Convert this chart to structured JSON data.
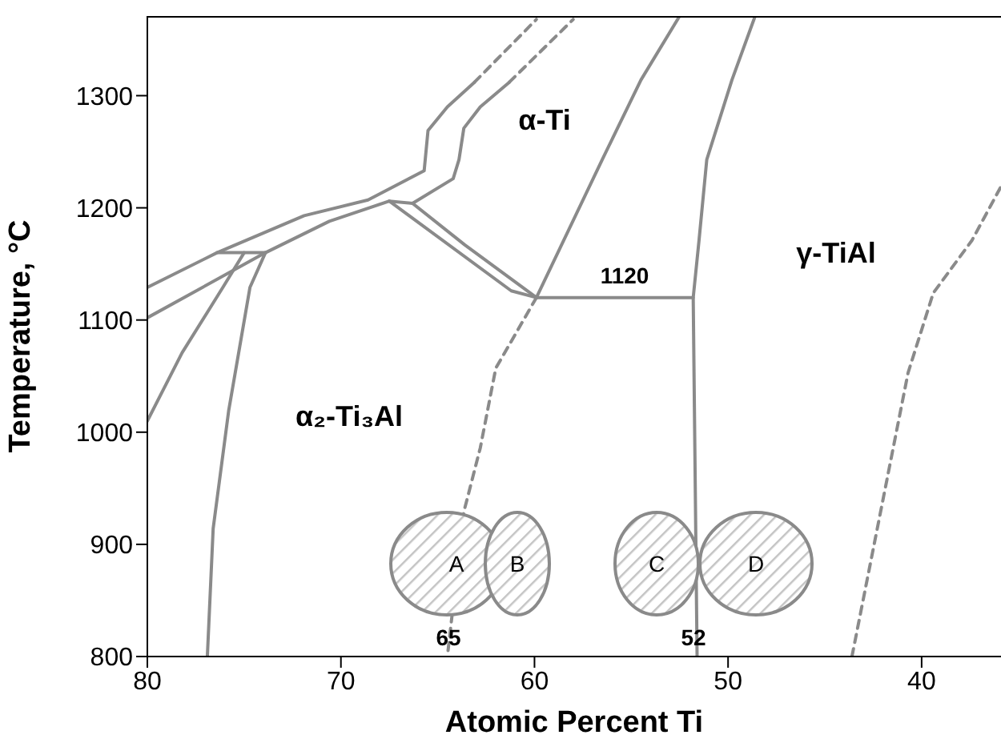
{
  "chart_data": {
    "type": "line",
    "xlabel": "Atomic Percent Ti",
    "ylabel": "Temperature, °C",
    "xlim": [
      80,
      35.9
    ],
    "ylim": [
      800,
      1371
    ],
    "xticks": [
      80,
      70,
      60,
      50,
      40
    ],
    "yticks": [
      800,
      900,
      1000,
      1100,
      1200,
      1300
    ],
    "series": [
      {
        "color": "#8a8a8a",
        "line_style": "solid",
        "x": [
          80,
          76.4,
          71.9,
          68.6,
          65.7,
          65.5,
          64.5,
          63.1
        ],
        "values": [
          1129,
          1160,
          1193,
          1207,
          1233,
          1269,
          1290,
          1312
        ]
      },
      {
        "color": "#8a8a8a",
        "line_style": "dashed",
        "x": [
          63.1,
          59.9
        ],
        "values": [
          1312,
          1368
        ]
      },
      {
        "color": "#8a8a8a",
        "line_style": "solid",
        "x": [
          80,
          73.9,
          70.6,
          67.5,
          66.3,
          64.2,
          63.9,
          63.65,
          62.8,
          61.3
        ],
        "values": [
          1102,
          1160,
          1188,
          1206,
          1204,
          1226,
          1243,
          1271,
          1290,
          1312
        ]
      },
      {
        "color": "#8a8a8a",
        "line_style": "dashed",
        "x": [
          61.3,
          58.0
        ],
        "values": [
          1312,
          1368
        ]
      },
      {
        "color": "#8a8a8a",
        "line_style": "solid",
        "x": [
          76.4,
          73.9
        ],
        "values": [
          1160,
          1160
        ]
      },
      {
        "color": "#8a8a8a",
        "line_style": "solid",
        "x": [
          67.5,
          61.2,
          59.9,
          51.8
        ],
        "values": [
          1206,
          1126,
          1120,
          1120
        ]
      },
      {
        "color": "#8a8a8a",
        "line_style": "solid",
        "x": [
          66.3,
          63.6,
          59.9
        ],
        "values": [
          1204,
          1167,
          1120
        ]
      },
      {
        "color": "#8a8a8a",
        "line_style": "solid",
        "x": [
          80,
          78.2,
          76.1,
          75.0
        ],
        "values": [
          1010,
          1071,
          1129,
          1160
        ]
      },
      {
        "color": "#8a8a8a",
        "line_style": "solid",
        "x": [
          73.9,
          74.7,
          75.8,
          76.6,
          76.9
        ],
        "values": [
          1160,
          1129,
          1019,
          914,
          800
        ]
      },
      {
        "color": "#8a8a8a",
        "line_style": "dashed",
        "x": [
          59.9,
          62.0,
          62.8,
          63.65,
          64.5
        ],
        "values": [
          1120,
          1057,
          986,
          929,
          800
        ]
      },
      {
        "color": "#8a8a8a",
        "line_style": "solid",
        "x": [
          59.9,
          56.5,
          54.5,
          52.5
        ],
        "values": [
          1120,
          1243,
          1314,
          1371
        ]
      },
      {
        "color": "#8a8a8a",
        "line_style": "solid",
        "x": [
          48.6,
          49.8,
          51.1,
          51.5,
          51.8,
          51.6
        ],
        "values": [
          1371,
          1314,
          1243,
          1171,
          1120,
          800
        ]
      },
      {
        "color": "#8a8a8a",
        "line_style": "dashed",
        "x": [
          43.6,
          41.8,
          40.7,
          39.4,
          37.4,
          35.9
        ],
        "values": [
          800,
          957,
          1053,
          1124,
          1171,
          1219
        ]
      }
    ],
    "annotations": [
      "α-Ti",
      "γ-TiAl",
      "α₂-Ti₃Al",
      "1120",
      "A",
      "B",
      "C",
      "D",
      "65",
      "52"
    ]
  }
}
